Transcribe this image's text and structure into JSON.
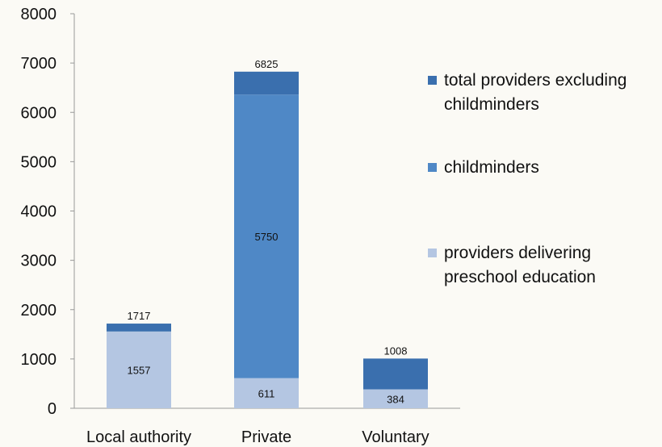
{
  "chart_data": {
    "type": "bar",
    "stacked": true,
    "title": "",
    "xlabel": "",
    "ylabel": "",
    "ylim": [
      0,
      8000
    ],
    "yticks": [
      0,
      1000,
      2000,
      3000,
      4000,
      5000,
      6000,
      7000,
      8000
    ],
    "grid": false,
    "legend_position": "right",
    "categories": [
      "Local authority",
      "Private",
      "Voluntary"
    ],
    "series": [
      {
        "name": "providers delivering preschool education",
        "color": "#b4c6e2",
        "values": [
          1557,
          611,
          384
        ],
        "labels": [
          "1557",
          "611",
          "384"
        ]
      },
      {
        "name": "childminders",
        "color": "#4f88c6",
        "values": [
          0,
          5750,
          0
        ],
        "labels": [
          "",
          "5750",
          ""
        ]
      },
      {
        "name": "total providers excluding childminders",
        "color": "#3a6fae",
        "values": [
          160,
          464,
          624
        ],
        "labels": [
          "1717",
          "6825",
          "1008"
        ]
      }
    ],
    "legend_order": [
      [
        "total providers excluding",
        "childminders"
      ],
      [
        "childminders"
      ],
      [
        "providers delivering",
        "preschool education"
      ]
    ]
  }
}
